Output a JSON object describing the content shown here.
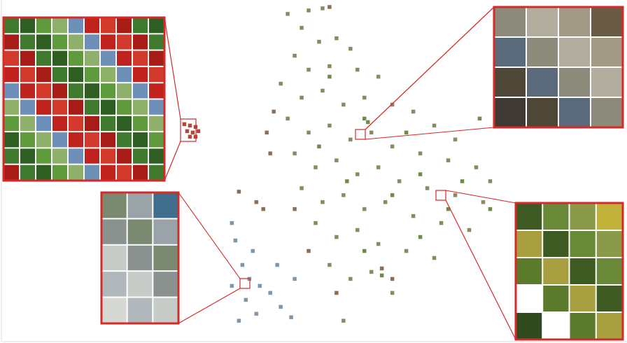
{
  "chart_data": {
    "type": "scatter",
    "xlim": [
      0,
      896
    ],
    "ylim": [
      0,
      490
    ],
    "tick_labels": false,
    "marker": "square",
    "series": [
      {
        "color": "#8a8a62",
        "x": [
          410,
          440,
          460,
          430,
          455,
          480,
          500,
          420,
          440,
          470,
          510,
          540,
          400,
          430,
          460,
          490,
          520,
          560,
          590,
          620,
          650,
          410,
          440,
          470,
          500,
          530,
          560,
          600,
          640,
          680,
          700,
          420,
          450,
          480,
          510,
          540,
          570,
          610,
          650,
          690,
          430,
          460,
          490,
          520,
          550,
          590,
          630,
          670,
          450,
          480,
          510,
          540,
          580,
          620,
          470,
          500,
          530,
          560,
          490
        ],
        "values": [
          470,
          475,
          478,
          450,
          430,
          435,
          420,
          410,
          390,
          395,
          390,
          380,
          370,
          350,
          360,
          340,
          350,
          340,
          330,
          310,
          290,
          320,
          300,
          310,
          290,
          300,
          280,
          270,
          260,
          250,
          230,
          270,
          250,
          260,
          240,
          250,
          230,
          220,
          210,
          200,
          220,
          200,
          210,
          190,
          200,
          180,
          170,
          160,
          170,
          150,
          160,
          140,
          130,
          120,
          110,
          90,
          100,
          70,
          30
        ]
      },
      {
        "color": "#6f8a4a",
        "x": [
          470,
          520,
          580,
          455,
          600,
          660,
          495,
          560,
          640,
          700,
          520,
          600,
          545,
          685,
          525
        ],
        "values": [
          380,
          320,
          300,
          280,
          240,
          230,
          230,
          210,
          190,
          190,
          130,
          150,
          95,
          320,
          315
        ]
      },
      {
        "color": "#8a6e55",
        "x": [
          380,
          385,
          375,
          365,
          390,
          420,
          440,
          480,
          545,
          560,
          340,
          470
        ],
        "values": [
          300,
          270,
          190,
          200,
          330,
          190,
          130,
          70,
          105,
          90,
          215,
          480
        ]
      },
      {
        "color": "#7f95a8",
        "x": [
          330,
          335,
          345,
          355,
          370,
          385,
          400,
          415,
          330,
          350,
          365,
          395,
          360,
          420,
          340
        ],
        "values": [
          170,
          145,
          110,
          90,
          80,
          70,
          50,
          35,
          80,
          60,
          40,
          110,
          130,
          90,
          30
        ]
      },
      {
        "color": "#b8443a",
        "x": [
          262,
          270,
          278,
          266,
          274,
          282,
          270,
          278
        ],
        "values": [
          312,
          310,
          308,
          302,
          300,
          302,
          294,
          294
        ]
      }
    ]
  }
}
